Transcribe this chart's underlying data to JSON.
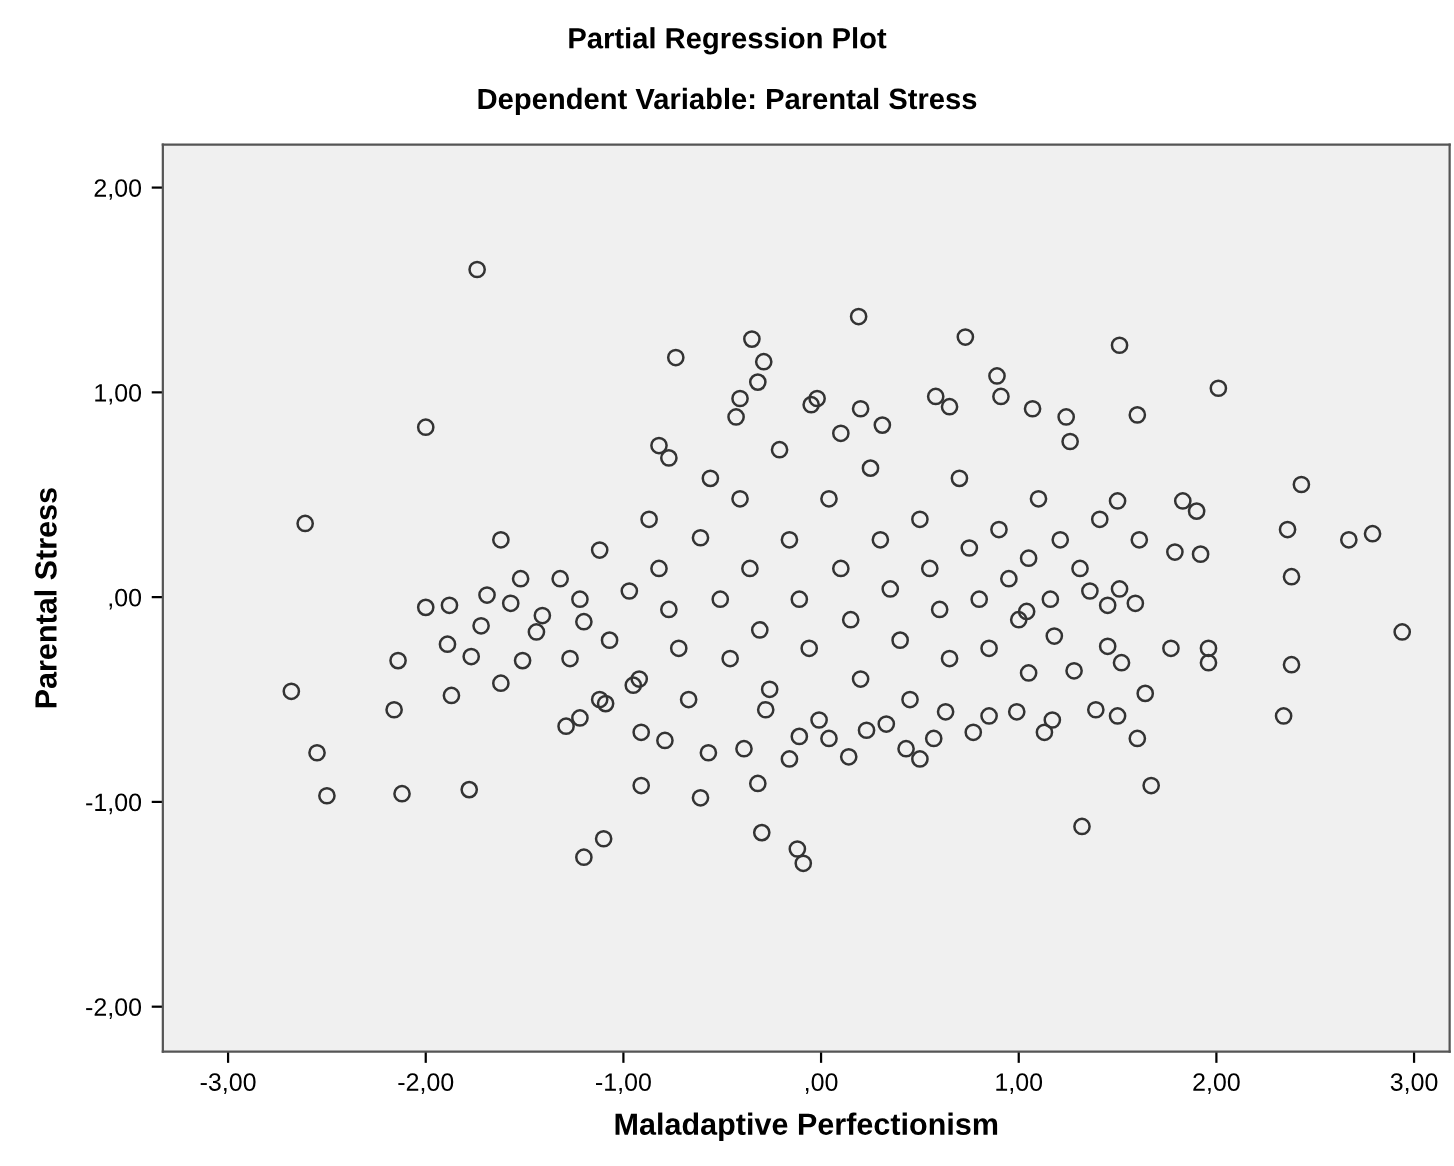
{
  "chart_data": {
    "type": "scatter",
    "title": "Partial Regression Plot",
    "subtitle": "Dependent Variable: Parental Stress",
    "xlabel": "Maladaptive Perfectionism",
    "ylabel": "Parental Stress",
    "xlim": [
      -3.33,
      3.18
    ],
    "ylim": [
      -2.22,
      2.21
    ],
    "xticks": [
      {
        "value": -3,
        "label": "-3,00"
      },
      {
        "value": -2,
        "label": "-2,00"
      },
      {
        "value": -1,
        "label": "-1,00"
      },
      {
        "value": 0,
        "label": ",00"
      },
      {
        "value": 1,
        "label": "1,00"
      },
      {
        "value": 2,
        "label": "2,00"
      },
      {
        "value": 3,
        "label": "3,00"
      }
    ],
    "yticks": [
      {
        "value": -2,
        "label": "-2,00"
      },
      {
        "value": -1,
        "label": "-1,00"
      },
      {
        "value": 0,
        "label": ",00"
      },
      {
        "value": 1,
        "label": "1,00"
      },
      {
        "value": 2,
        "label": "2,00"
      }
    ],
    "grid": false,
    "marker": "circle",
    "series": [
      {
        "color": "#333333",
        "x": [
          -1.74,
          -0.735,
          -0.35,
          -0.29,
          -0.32,
          -2.0,
          -2.61,
          -0.43,
          -0.82,
          0.19,
          0.73,
          1.51,
          2.01,
          1.6,
          2.43,
          2.36,
          2.67,
          2.79,
          2.38,
          0.89,
          0.91,
          1.07,
          1.24,
          1.26,
          1.83,
          1.9,
          1.79,
          1.92,
          1.5,
          -0.05,
          -0.02,
          0.58,
          0.65,
          0.31,
          0.1,
          -2.68,
          -2.55,
          -2.5,
          -2.14,
          -2.16,
          -2.12,
          -1.78,
          -2.0,
          -1.88,
          -1.89,
          -1.69,
          -1.72,
          -1.77,
          -1.87,
          -1.62,
          -1.51,
          -1.2,
          -1.1,
          -0.91,
          -0.61,
          -0.32,
          -0.3,
          -1.29,
          -1.22,
          -0.91,
          -0.79,
          -0.57,
          -0.39,
          -0.28,
          -1.44,
          -1.57,
          -1.2,
          -1.09,
          -0.95,
          -0.12,
          -0.09,
          2.94,
          2.38,
          2.34,
          1.96,
          1.96,
          1.77,
          1.67,
          1.32,
          1.6,
          1.64,
          1.52,
          1.45,
          1.59,
          1.45,
          1.13,
          1.17,
          0.99,
          1.39,
          1.5,
          1.28,
          1.05,
          0.43,
          0.14,
          -0.11,
          0.57,
          0.77,
          0.63,
          0.85,
          0.04,
          0.33,
          0.23,
          1.18,
          1.36,
          1.04,
          -1.41,
          -1.32,
          -1.22,
          -1.12,
          -1.07,
          -0.97,
          -0.92,
          -0.87,
          -0.82,
          -0.77,
          -0.72,
          -0.67,
          -0.61,
          -0.56,
          -0.51,
          -0.46,
          -0.41,
          -0.36,
          -0.31,
          -0.26,
          -0.21,
          -0.16,
          -0.11,
          -0.06,
          -0.01,
          0.04,
          0.1,
          0.15,
          0.2,
          0.25,
          0.3,
          0.35,
          0.4,
          0.45,
          0.5,
          0.55,
          0.6,
          0.65,
          0.7,
          0.75,
          0.8,
          0.85,
          0.9,
          0.95,
          1.0,
          1.05,
          1.1,
          1.16,
          1.21,
          1.31,
          1.41,
          1.51,
          1.61,
          -1.12,
          -1.27,
          -1.52,
          -1.62,
          -0.16,
          0.5,
          0.2,
          -0.41,
          -0.77
        ],
        "values": [
          1.6,
          1.17,
          1.26,
          1.15,
          1.05,
          0.83,
          0.36,
          0.88,
          0.74,
          1.37,
          1.27,
          1.23,
          1.02,
          0.89,
          0.55,
          0.33,
          0.28,
          0.31,
          0.1,
          1.08,
          0.98,
          0.92,
          0.88,
          0.76,
          0.47,
          0.42,
          0.22,
          0.21,
          0.47,
          0.94,
          0.97,
          0.98,
          0.93,
          0.84,
          0.8,
          -0.46,
          -0.76,
          -0.97,
          -0.31,
          -0.55,
          -0.96,
          -0.94,
          -0.05,
          -0.04,
          -0.23,
          0.01,
          -0.14,
          -0.29,
          -0.48,
          -0.42,
          -0.31,
          -1.27,
          -1.18,
          -0.92,
          -0.98,
          -0.91,
          -1.15,
          -0.63,
          -0.59,
          -0.66,
          -0.7,
          -0.76,
          -0.74,
          -0.55,
          -0.17,
          -0.03,
          -0.12,
          -0.52,
          -0.43,
          -1.23,
          -1.3,
          -0.17,
          -0.33,
          -0.58,
          -0.25,
          -0.32,
          -0.25,
          -0.92,
          -1.12,
          -0.69,
          -0.47,
          -0.32,
          -0.24,
          -0.03,
          -0.04,
          -0.66,
          -0.6,
          -0.56,
          -0.55,
          -0.58,
          -0.36,
          -0.37,
          -0.74,
          -0.78,
          -0.68,
          -0.69,
          -0.66,
          -0.56,
          -0.58,
          -0.69,
          -0.62,
          -0.65,
          -0.19,
          0.03,
          -0.07,
          -0.09,
          0.09,
          -0.01,
          0.23,
          -0.21,
          0.03,
          -0.4,
          0.38,
          0.14,
          -0.06,
          -0.25,
          -0.5,
          0.29,
          0.58,
          -0.01,
          -0.3,
          0.48,
          0.14,
          -0.16,
          -0.45,
          0.72,
          0.28,
          -0.01,
          -0.25,
          -0.6,
          0.48,
          0.14,
          -0.11,
          -0.4,
          0.63,
          0.28,
          0.04,
          -0.21,
          -0.5,
          0.38,
          0.14,
          -0.06,
          -0.3,
          0.58,
          0.24,
          -0.01,
          -0.25,
          0.33,
          0.09,
          -0.11,
          0.19,
          0.48,
          -0.01,
          0.28,
          0.14,
          0.38,
          0.04,
          0.28,
          -0.5,
          -0.3,
          0.09,
          0.28,
          -0.79,
          -0.79,
          0.92,
          0.97,
          0.68
        ]
      }
    ]
  }
}
